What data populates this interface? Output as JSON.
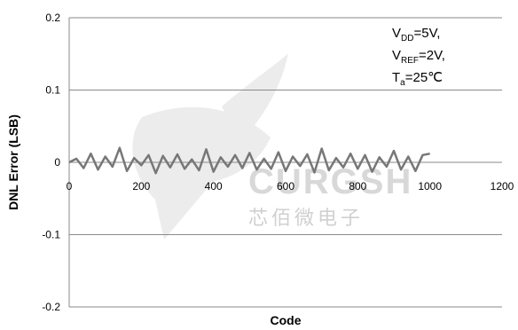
{
  "chart_data": {
    "type": "line",
    "title": "",
    "xlabel": "Code",
    "ylabel": "DNL Error (LSB)",
    "xlim": [
      0,
      1200
    ],
    "ylim": [
      -0.2,
      0.2
    ],
    "x_ticks": [
      "0",
      "200",
      "400",
      "600",
      "800",
      "1000",
      "1200"
    ],
    "y_ticks": [
      "0.2",
      "0.1",
      "0",
      "-0.1",
      "-0.2"
    ],
    "grid": "horizontal",
    "series": [
      {
        "color": "#777777",
        "x_range": [
          0,
          1000
        ],
        "values": [
          0,
          0.005,
          -0.008,
          0.012,
          -0.01,
          0.008,
          -0.006,
          0.02,
          -0.012,
          0.006,
          -0.004,
          0.01,
          -0.015,
          0.009,
          -0.007,
          0.011,
          -0.009,
          0.004,
          -0.011,
          0.018,
          -0.013,
          0.007,
          -0.006,
          0.01,
          -0.008,
          0.013,
          -0.01,
          0.005,
          -0.009,
          0.014,
          -0.012,
          0.008,
          -0.005,
          0.011,
          -0.014,
          0.019,
          -0.011,
          0.006,
          -0.007,
          0.012,
          -0.009,
          0.01,
          -0.013,
          0.007,
          -0.006,
          0.016,
          -0.01,
          0.008,
          -0.012,
          0.01,
          0.012
        ]
      }
    ],
    "annotations": [
      {
        "main": "V",
        "sub": "DD",
        "rest": "=5V,"
      },
      {
        "main": "V",
        "sub": "REF",
        "rest": "=2V,"
      },
      {
        "main": "T",
        "sub": "a",
        "rest": "=25℃"
      }
    ]
  },
  "watermark": {
    "text": "CURGSH",
    "subtext": "芯佰微电子",
    "color": "#d6d6d6"
  }
}
